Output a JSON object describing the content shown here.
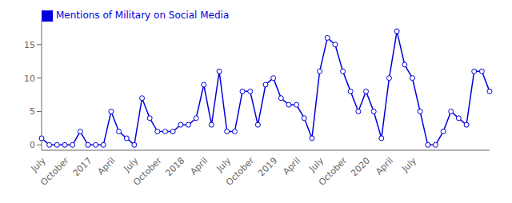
{
  "chart_data": {
    "type": "line",
    "categories": [
      "July",
      null,
      null,
      "October",
      null,
      null,
      "2017",
      null,
      null,
      "April",
      null,
      null,
      "July",
      null,
      null,
      "October",
      null,
      null,
      "2018",
      null,
      null,
      "April",
      null,
      null,
      "July",
      null,
      null,
      "October",
      null,
      null,
      "2019",
      null,
      null,
      "April",
      null,
      null,
      "July",
      null,
      null,
      "October",
      null,
      null,
      "2020",
      null,
      null,
      "April",
      null,
      null,
      "July",
      null,
      null,
      null,
      null,
      null,
      null,
      null,
      null,
      null,
      null
    ],
    "series": [
      {
        "name": "Mentions of Military on Social Media",
        "color": "#0000dd",
        "marker": "circle",
        "values": [
          1,
          0,
          0,
          0,
          0,
          2,
          0,
          0,
          0,
          5,
          2,
          1,
          0,
          7,
          4,
          2,
          2,
          2,
          3,
          3,
          4,
          9,
          3,
          11,
          2,
          2,
          8,
          8,
          3,
          9,
          10,
          7,
          6,
          6,
          4,
          1,
          11,
          16,
          15,
          11,
          8,
          5,
          8,
          5,
          1,
          10,
          17,
          12,
          10,
          5,
          0,
          0,
          2,
          5,
          4,
          3,
          11,
          11,
          8
        ]
      }
    ],
    "ylim": [
      -0.8,
      18.5
    ],
    "yticks": [
      0,
      5,
      10,
      15
    ],
    "grid": false,
    "legend": "upper left"
  }
}
